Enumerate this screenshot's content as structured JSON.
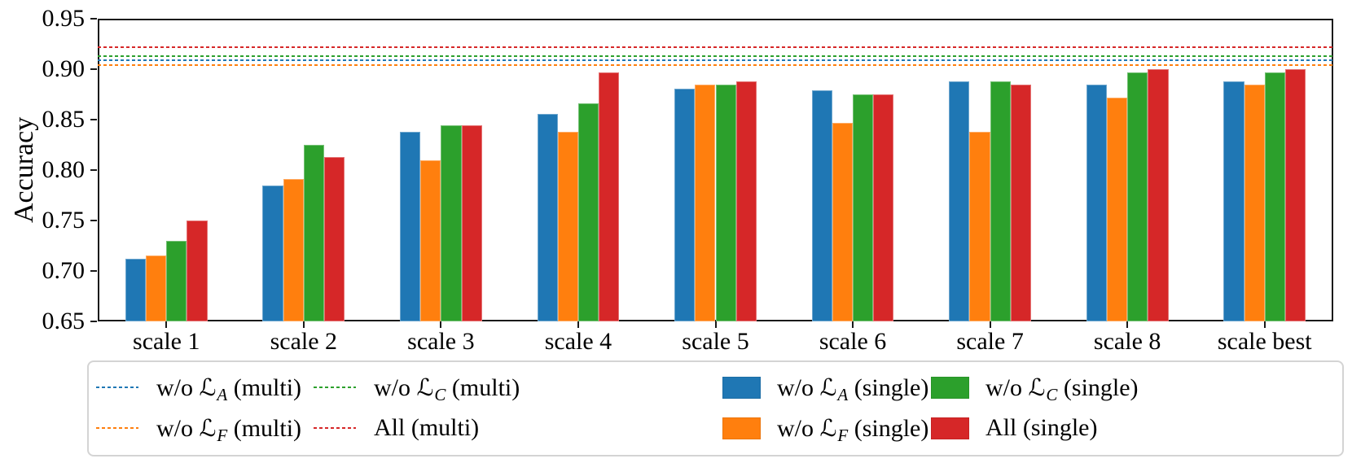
{
  "chart_data": {
    "type": "bar",
    "title": "",
    "xlabel": "",
    "ylabel": "Accuracy",
    "ylim": [
      0.65,
      0.95
    ],
    "yticks": [
      "0.65",
      "0.70",
      "0.75",
      "0.80",
      "0.85",
      "0.90",
      "0.95"
    ],
    "grid": false,
    "legend_position": "bottom",
    "categories": [
      "scale 1",
      "scale 2",
      "scale 3",
      "scale 4",
      "scale 5",
      "scale 6",
      "scale 7",
      "scale 8",
      "scale best"
    ],
    "series": [
      {
        "name": "w/o L_A (single)",
        "color": "#1f77b4",
        "values": [
          0.712,
          0.785,
          0.838,
          0.856,
          0.881,
          0.879,
          0.888,
          0.885,
          0.888
        ]
      },
      {
        "name": "w/o L_F (single)",
        "color": "#ff7f0e",
        "values": [
          0.715,
          0.791,
          0.81,
          0.838,
          0.885,
          0.847,
          0.838,
          0.872,
          0.885
        ]
      },
      {
        "name": "w/o L_C (single)",
        "color": "#2ca02c",
        "values": [
          0.73,
          0.825,
          0.844,
          0.866,
          0.885,
          0.875,
          0.888,
          0.897,
          0.897
        ]
      },
      {
        "name": "All (single)",
        "color": "#d62728",
        "values": [
          0.75,
          0.813,
          0.844,
          0.897,
          0.888,
          0.875,
          0.885,
          0.9,
          0.9
        ]
      }
    ],
    "hlines": [
      {
        "name": "w/o L_A (multi)",
        "color": "#1f77b4",
        "value": 0.909
      },
      {
        "name": "w/o L_F (multi)",
        "color": "#ff7f0e",
        "value": 0.904
      },
      {
        "name": "w/o L_C (multi)",
        "color": "#2ca02c",
        "value": 0.913
      },
      {
        "name": "All (multi)",
        "color": "#d62728",
        "value": 0.922
      }
    ],
    "legend": {
      "columns": [
        [
          {
            "swatch": "line",
            "color": "#1f77b4",
            "parts": [
              {
                "t": "w/o "
              },
              {
                "scriptL": true,
                "sub": "A"
              },
              {
                "t": " (multi)"
              }
            ]
          },
          {
            "swatch": "line",
            "color": "#ff7f0e",
            "parts": [
              {
                "t": "w/o "
              },
              {
                "scriptL": true,
                "sub": "F"
              },
              {
                "t": " (multi)"
              }
            ]
          }
        ],
        [
          {
            "swatch": "line",
            "color": "#2ca02c",
            "parts": [
              {
                "t": "w/o "
              },
              {
                "scriptL": true,
                "sub": "C"
              },
              {
                "t": " (multi)"
              }
            ]
          },
          {
            "swatch": "line",
            "color": "#d62728",
            "parts": [
              {
                "t": "All (multi)"
              }
            ]
          }
        ],
        [
          {
            "swatch": "patch",
            "color": "#1f77b4",
            "parts": [
              {
                "t": "w/o "
              },
              {
                "scriptL": true,
                "sub": "A"
              },
              {
                "t": " (single)"
              }
            ]
          },
          {
            "swatch": "patch",
            "color": "#ff7f0e",
            "parts": [
              {
                "t": "w/o "
              },
              {
                "scriptL": true,
                "sub": "F"
              },
              {
                "t": " (single)"
              }
            ]
          }
        ],
        [
          {
            "swatch": "patch",
            "color": "#2ca02c",
            "parts": [
              {
                "t": "w/o "
              },
              {
                "scriptL": true,
                "sub": "C"
              },
              {
                "t": " (single)"
              }
            ]
          },
          {
            "swatch": "patch",
            "color": "#d62728",
            "parts": [
              {
                "t": "All (single)"
              }
            ]
          }
        ]
      ],
      "script_letter": "ℒ"
    }
  }
}
